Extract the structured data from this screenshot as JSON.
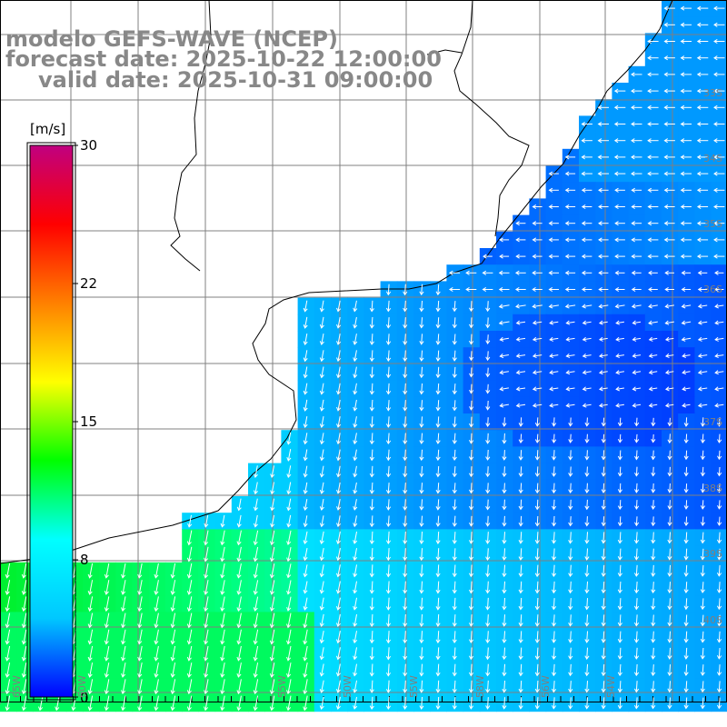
{
  "header": {
    "line1": "modelo GEFS-WAVE (NCEP)",
    "line2": "forecast date: 2025-10-22 12:00:00",
    "line3": "valid date: 2025-10-31 09:00:00"
  },
  "colorbar": {
    "unit": "[m/s]",
    "ticks": [
      "30",
      "22",
      "15",
      "8",
      "0"
    ],
    "tick_values": [
      30,
      22,
      15,
      8,
      0
    ],
    "colors": [
      "#0000ff",
      "#00c8ff",
      "#00ffff",
      "#00ff00",
      "#ffff00",
      "#ff8000",
      "#ff0000",
      "#c00080"
    ]
  },
  "lat_labels": [
    "33S",
    "34S",
    "35S",
    "36S",
    "37S",
    "38S",
    "39S",
    "40S"
  ],
  "lon_labels": [
    "65W",
    "60W",
    "55W",
    "50W",
    "55W",
    "58W",
    "56W",
    "54W"
  ],
  "colors": {
    "land": "#ffffff",
    "coast": "#000000",
    "grid": "#808080",
    "arrow": "#ffffff",
    "label": "#888888"
  }
}
